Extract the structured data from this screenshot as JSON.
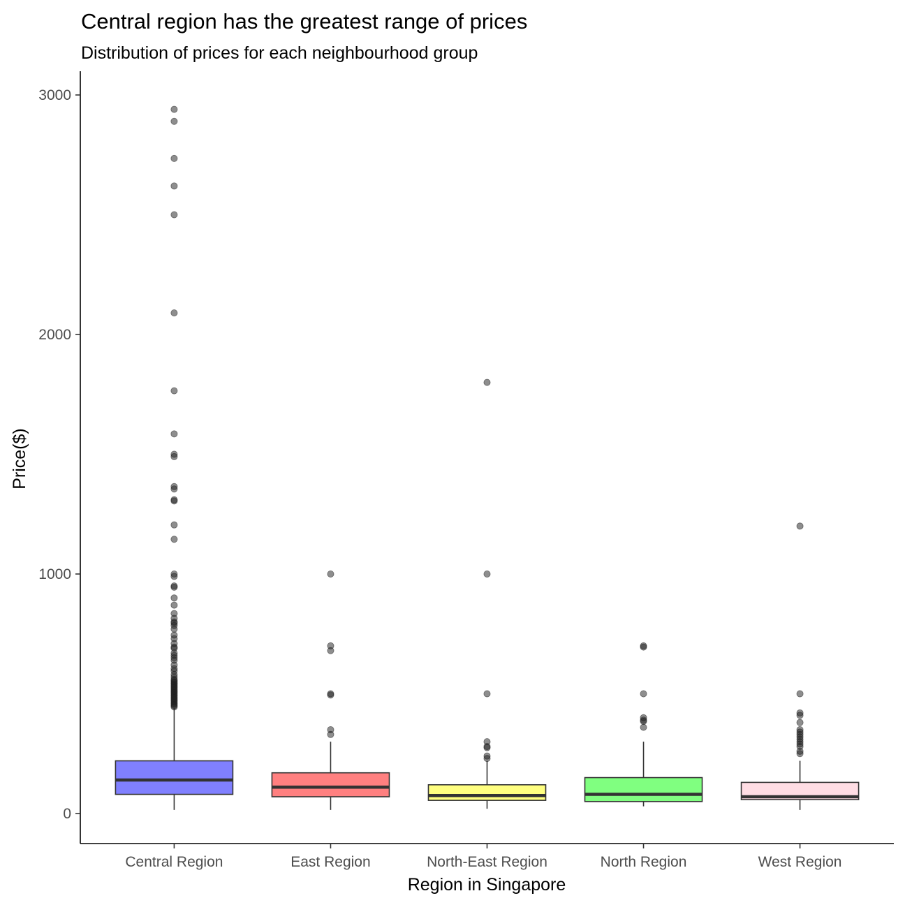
{
  "chart_data": {
    "type": "box",
    "title": "Central region has the greatest range of prices",
    "subtitle": "Distribution of prices for each neighbourhood group",
    "xlabel": "Region in Singapore",
    "ylabel": "Price($)",
    "ylim": [
      -130,
      3080
    ],
    "yticks": [
      0,
      1000,
      2000,
      3000
    ],
    "grid": false,
    "categories": [
      "Central Region",
      "East Region",
      "North-East Region",
      "North Region",
      "West Region"
    ],
    "boxes": [
      {
        "category": "Central Region",
        "fill": "#8080ff",
        "min": 15,
        "q1": 80,
        "median": 140,
        "q3": 220,
        "max": 440,
        "outliers": [
          2940,
          2890,
          2735,
          2620,
          2500,
          2090,
          1765,
          1585,
          1500,
          1490,
          1365,
          1355,
          1310,
          1305,
          1205,
          1145,
          1000,
          990,
          950,
          945,
          900,
          870,
          835,
          815,
          800,
          795,
          785,
          770,
          745,
          730,
          710,
          695,
          690,
          670,
          660,
          650,
          640,
          620,
          605,
          595,
          580,
          570,
          560,
          555,
          550,
          545,
          540,
          535,
          530,
          525,
          520,
          515,
          510,
          505,
          500,
          495,
          490,
          485,
          480,
          475,
          470,
          465,
          460,
          455,
          450,
          445
        ]
      },
      {
        "category": "East Region",
        "fill": "#ff8080",
        "min": 15,
        "q1": 70,
        "median": 110,
        "q3": 170,
        "max": 300,
        "outliers": [
          1000,
          700,
          680,
          500,
          495,
          350,
          330
        ]
      },
      {
        "category": "North-East Region",
        "fill": "#ffff80",
        "min": 20,
        "q1": 55,
        "median": 75,
        "q3": 120,
        "max": 220,
        "outliers": [
          1800,
          1000,
          500,
          300,
          280,
          275,
          240,
          230
        ]
      },
      {
        "category": "North Region",
        "fill": "#80ff80",
        "min": 30,
        "q1": 50,
        "median": 80,
        "q3": 150,
        "max": 300,
        "outliers": [
          700,
          695,
          500,
          400,
          390,
          385,
          360
        ]
      },
      {
        "category": "West Region",
        "fill": "#ffdde4",
        "min": 15,
        "q1": 58,
        "median": 70,
        "q3": 130,
        "max": 220,
        "outliers": [
          1200,
          500,
          420,
          410,
          380,
          350,
          340,
          330,
          320,
          310,
          300,
          290,
          280,
          260,
          250
        ]
      }
    ]
  }
}
